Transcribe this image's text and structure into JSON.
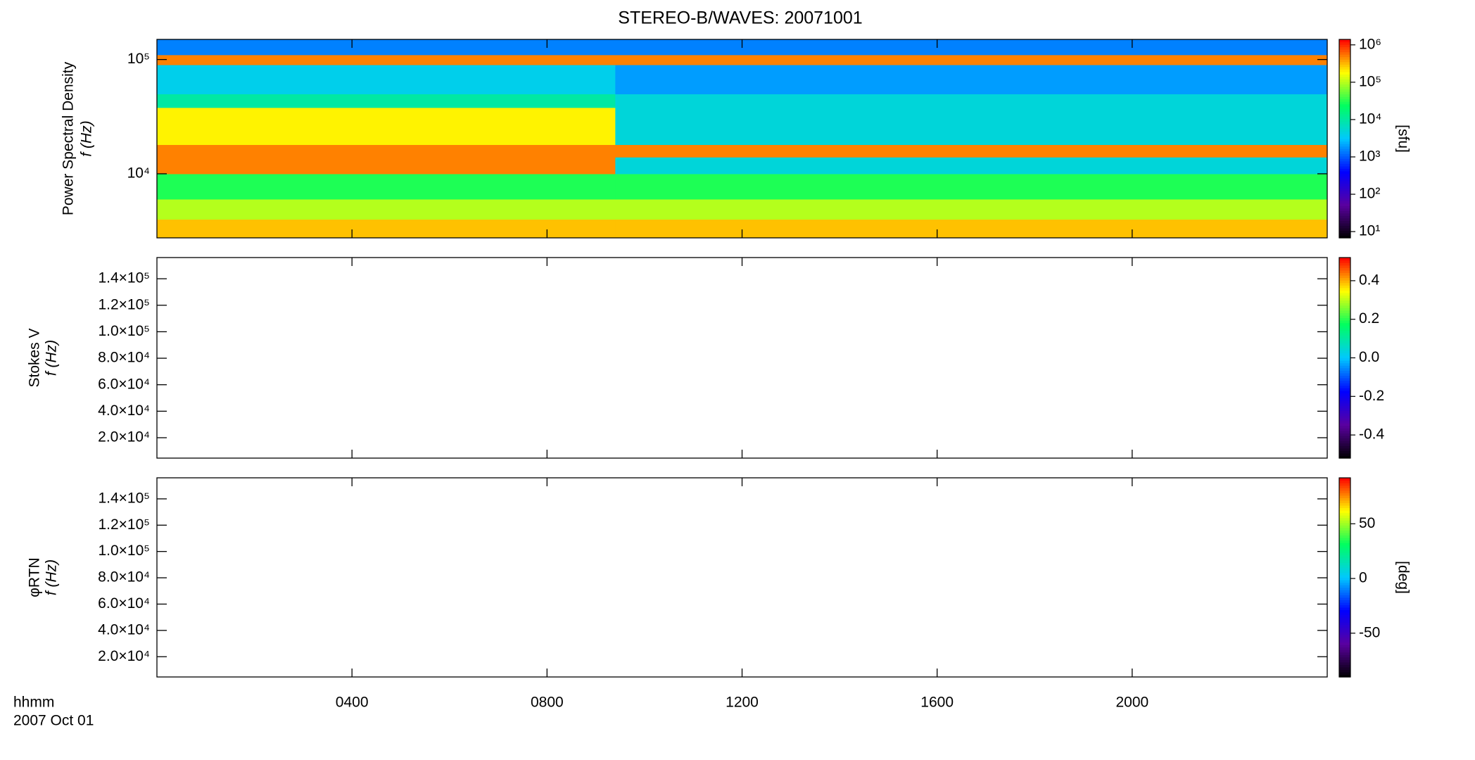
{
  "chart_data": [
    {
      "type": "spectrogram",
      "title": "STEREO-B/WAVES: 20071001",
      "ylabel": "Power Spectral Density",
      "ylabel2": "f (Hz)",
      "xlim": [
        0,
        24
      ],
      "xticks": [
        4,
        8,
        12,
        16,
        20
      ],
      "ylim": [
        2750,
        150000
      ],
      "ylog": true,
      "yticks": [
        {
          "value": 10000,
          "label": "10⁴"
        },
        {
          "value": 100000,
          "label": "10⁵"
        }
      ],
      "x_edges": [
        0,
        9.4,
        24
      ],
      "y_edges": [
        2750,
        4000,
        6000,
        10000,
        14000,
        18000,
        38000,
        50000,
        90000,
        110000,
        150000
      ],
      "values": [
        [
          300000,
          300000
        ],
        [
          100000,
          100000
        ],
        [
          30000,
          30000
        ],
        [
          500000,
          5000
        ],
        [
          500000,
          500000
        ],
        [
          200000,
          5000
        ],
        [
          10000,
          5000
        ],
        [
          4000,
          2000
        ],
        [
          500000,
          500000
        ],
        [
          1500,
          1500
        ]
      ],
      "colorbar": {
        "log": true,
        "zlim": [
          6.8,
          1400000
        ],
        "title": "[sfu]",
        "ticks": [
          {
            "value": 10,
            "label": "10¹"
          },
          {
            "value": 100,
            "label": "10²"
          },
          {
            "value": 1000,
            "label": "10³"
          },
          {
            "value": 10000,
            "label": "10⁴"
          },
          {
            "value": 100000,
            "label": "10⁵"
          },
          {
            "value": 1000000,
            "label": "10⁶"
          }
        ]
      },
      "colormap": [
        "#000000",
        "#5a00a0",
        "#0000ff",
        "#00c8ff",
        "#00ff60",
        "#ffff00",
        "#ff0000"
      ]
    },
    {
      "type": "spectrogram",
      "ylabel": "Stokes V",
      "ylabel2": "f (Hz)",
      "xlim": [
        0,
        24
      ],
      "xticks": [
        4,
        8,
        12,
        16,
        20
      ],
      "ylim": [
        4600,
        156000
      ],
      "ylog": false,
      "yticks": [
        {
          "value": 20000,
          "label": "2.0×10⁴"
        },
        {
          "value": 40000,
          "label": "4.0×10⁴"
        },
        {
          "value": 60000,
          "label": "6.0×10⁴"
        },
        {
          "value": 80000,
          "label": "8.0×10⁴"
        },
        {
          "value": 100000,
          "label": "1.0×10⁵"
        },
        {
          "value": 120000,
          "label": "1.2×10⁵"
        },
        {
          "value": 140000,
          "label": "1.4×10⁵"
        }
      ],
      "colorbar": {
        "log": false,
        "zlim": [
          -0.52,
          0.52
        ],
        "ticks": [
          -0.4,
          -0.2,
          {
            "value": 0,
            "label": "0.0"
          },
          0.2,
          0.4
        ]
      },
      "colormap": [
        "#000000",
        "#5a00a0",
        "#0000ff",
        "#00c8ff",
        "#00ff60",
        "#ffff00",
        "#ff0000"
      ]
    },
    {
      "type": "spectrogram",
      "ylabel": "φRTN",
      "ylabel2": "f (Hz)",
      "xlabel": "hhmm",
      "date_label": "2007 Oct 01",
      "xlim": [
        0,
        24
      ],
      "xticks": [
        {
          "value": 4,
          "label": "0400"
        },
        {
          "value": 8,
          "label": "0800"
        },
        {
          "value": 12,
          "label": "1200"
        },
        {
          "value": 16,
          "label": "1600"
        },
        {
          "value": 20,
          "label": "2000"
        }
      ],
      "ylim": [
        4600,
        156000
      ],
      "ylog": false,
      "yticks": [
        {
          "value": 20000,
          "label": "2.0×10⁴"
        },
        {
          "value": 40000,
          "label": "4.0×10⁴"
        },
        {
          "value": 60000,
          "label": "6.0×10⁴"
        },
        {
          "value": 80000,
          "label": "8.0×10⁴"
        },
        {
          "value": 100000,
          "label": "1.0×10⁵"
        },
        {
          "value": 120000,
          "label": "1.2×10⁵"
        },
        {
          "value": 140000,
          "label": "1.4×10⁵"
        }
      ],
      "colorbar": {
        "log": false,
        "zlim": [
          -90,
          92
        ],
        "title": "[deg]",
        "ticks": [
          -50,
          0,
          50
        ]
      },
      "colormap": [
        "#000000",
        "#5a00a0",
        "#0000ff",
        "#00c8ff",
        "#00ff60",
        "#ffff00",
        "#ff0000"
      ]
    }
  ]
}
